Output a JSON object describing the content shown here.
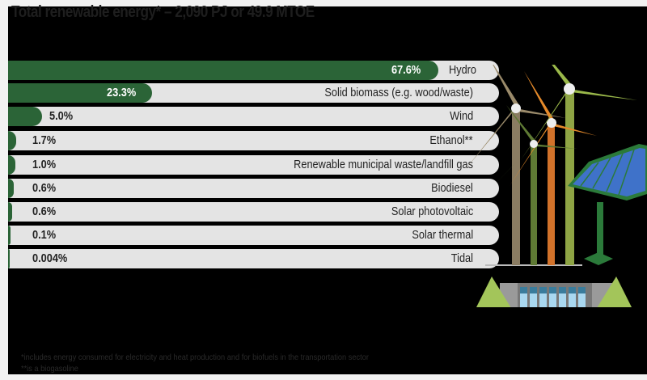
{
  "title": "Total renewable energy* – 2,090 PJ or 49.9 MTOE",
  "bars": [
    {
      "label": "Hydro",
      "pct": "67.6%",
      "value": 67.6
    },
    {
      "label": "Solid biomass (e.g. wood/waste)",
      "pct": "23.3%",
      "value": 23.3
    },
    {
      "label": "Wind",
      "pct": "5.0%",
      "value": 5.0
    },
    {
      "label": "Ethanol**",
      "pct": "1.7%",
      "value": 1.7
    },
    {
      "label": "Renewable municipal waste/landfill gas",
      "pct": "1.0%",
      "value": 1.0
    },
    {
      "label": "Biodiesel",
      "pct": "0.6%",
      "value": 0.6
    },
    {
      "label": "Solar photovoltaic",
      "pct": "0.6%",
      "value": 0.6
    },
    {
      "label": "Solar thermal",
      "pct": "0.1%",
      "value": 0.1
    },
    {
      "label": "Tidal",
      "pct": "0.004%",
      "value": 0.004
    }
  ],
  "footnotes": [
    "*includes energy consumed for electricity and heat production and for biofuels in the transportation sector",
    "**is a biogasoline"
  ],
  "colors": {
    "fill": "#2b6437",
    "track": "#e4e4e4",
    "background": "#000000"
  },
  "chart_data": {
    "type": "bar",
    "orientation": "horizontal",
    "title": "Total renewable energy* – 2,090 PJ or 49.9 MTOE",
    "categories": [
      "Hydro",
      "Solid biomass (e.g. wood/waste)",
      "Wind",
      "Ethanol**",
      "Renewable municipal waste/landfill gas",
      "Biodiesel",
      "Solar photovoltaic",
      "Solar thermal",
      "Tidal"
    ],
    "values": [
      67.6,
      23.3,
      5.0,
      1.7,
      1.0,
      0.6,
      0.6,
      0.1,
      0.004
    ],
    "unit": "%",
    "xlabel": "",
    "ylabel": "",
    "xlim": [
      0,
      100
    ],
    "grid": false,
    "legend": null,
    "annotations": [
      "*includes energy consumed for electricity and heat production and for biofuels in the transportation sector",
      "**is a biogasoline"
    ]
  }
}
